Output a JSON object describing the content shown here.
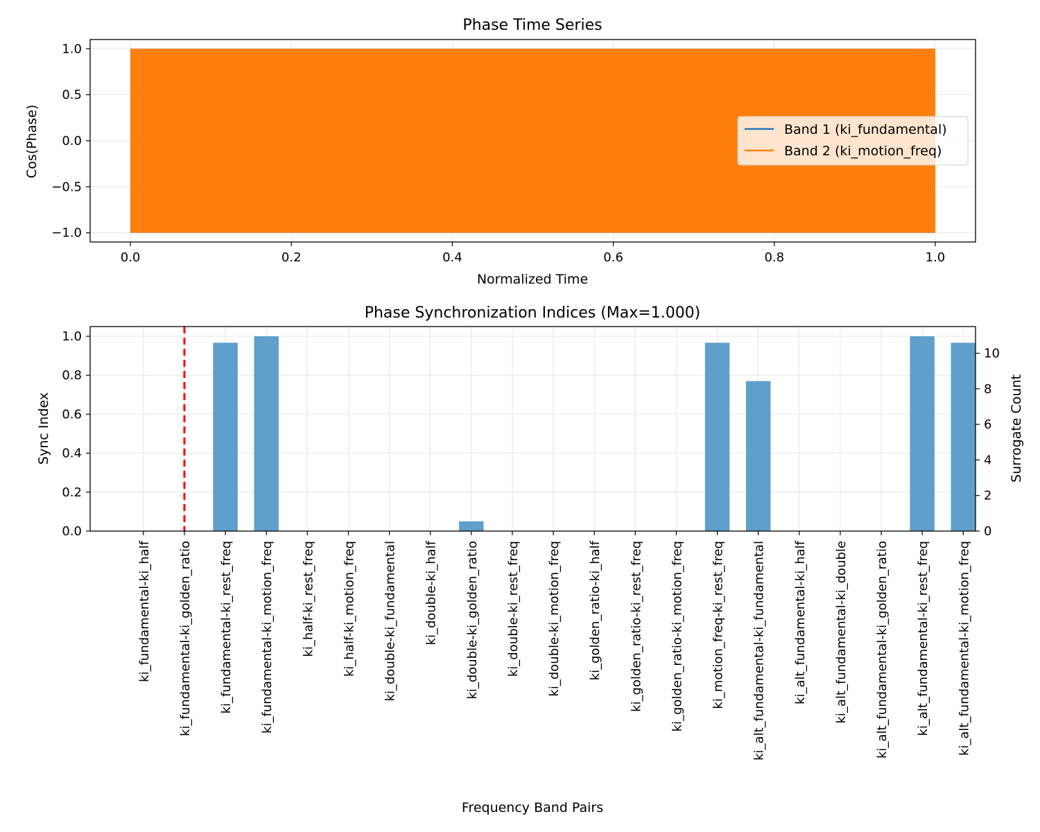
{
  "colors": {
    "band1": "#1f77b4",
    "band2": "#ff7f0e",
    "bar": "#5f9fcb",
    "surrogate_line": "#ff0000",
    "grid": "#e6e6e6"
  },
  "chart_data": [
    {
      "type": "line",
      "title": "Phase Time Series",
      "xlabel": "Normalized Time",
      "ylabel": "Cos(Phase)",
      "xlim": [
        -0.05,
        1.05
      ],
      "ylim": [
        -1.1,
        1.1
      ],
      "xticks": [
        0.0,
        0.2,
        0.4,
        0.6,
        0.8,
        1.0
      ],
      "xtick_labels": [
        "0.0",
        "0.2",
        "0.4",
        "0.6",
        "0.8",
        "1.0"
      ],
      "yticks": [
        -1.0,
        -0.5,
        0.0,
        0.5,
        1.0
      ],
      "ytick_labels": [
        "−1.0",
        "−0.5",
        "0.0",
        "0.5",
        "1.0"
      ],
      "grid": true,
      "legend_position": "center-right",
      "series": [
        {
          "name": "Band 1 (ki_fundamental)",
          "color": "#1f77b4",
          "x_range": [
            0.0,
            1.0
          ],
          "y_range": [
            -1.0,
            1.0
          ],
          "render": "dense-oscillation"
        },
        {
          "name": "Band 2 (ki_motion_freq)",
          "color": "#ff7f0e",
          "x_range": [
            0.0,
            1.0
          ],
          "y_range": [
            -1.0,
            1.0
          ],
          "render": "dense-oscillation"
        }
      ]
    },
    {
      "type": "bar",
      "title": "Phase Synchronization Indices (Max=1.000)",
      "xlabel": "Frequency Band Pairs",
      "ylabel": "Sync Index",
      "y2label": "Surrogate Count",
      "ylim": [
        0,
        1.05
      ],
      "y2lim": [
        0,
        11.5
      ],
      "yticks": [
        0.0,
        0.2,
        0.4,
        0.6,
        0.8,
        1.0
      ],
      "ytick_labels": [
        "0.0",
        "0.2",
        "0.4",
        "0.6",
        "0.8",
        "1.0"
      ],
      "y2ticks": [
        0,
        2,
        4,
        6,
        8,
        10
      ],
      "y2tick_labels": [
        "0",
        "2",
        "4",
        "6",
        "8",
        "10"
      ],
      "grid": true,
      "categories": [
        "ki_fundamental-ki_half",
        "ki_fundamental-ki_golden_ratio",
        "ki_fundamental-ki_rest_freq",
        "ki_fundamental-ki_motion_freq",
        "ki_half-ki_rest_freq",
        "ki_half-ki_motion_freq",
        "ki_double-ki_fundamental",
        "ki_double-ki_half",
        "ki_double-ki_golden_ratio",
        "ki_double-ki_rest_freq",
        "ki_double-ki_motion_freq",
        "ki_golden_ratio-ki_half",
        "ki_golden_ratio-ki_rest_freq",
        "ki_golden_ratio-ki_motion_freq",
        "ki_motion_freq-ki_rest_freq",
        "ki_alt_fundamental-ki_fundamental",
        "ki_alt_fundamental-ki_half",
        "ki_alt_fundamental-ki_double",
        "ki_alt_fundamental-ki_golden_ratio",
        "ki_alt_fundamental-ki_rest_freq",
        "ki_alt_fundamental-ki_motion_freq"
      ],
      "values": [
        0,
        0,
        0.967,
        1.0,
        0,
        0,
        0,
        0,
        0.05,
        0,
        0,
        0,
        0,
        0,
        0.967,
        0.77,
        0,
        0,
        0,
        1.0,
        0.967
      ],
      "surrogate_marker_index": 1
    }
  ]
}
